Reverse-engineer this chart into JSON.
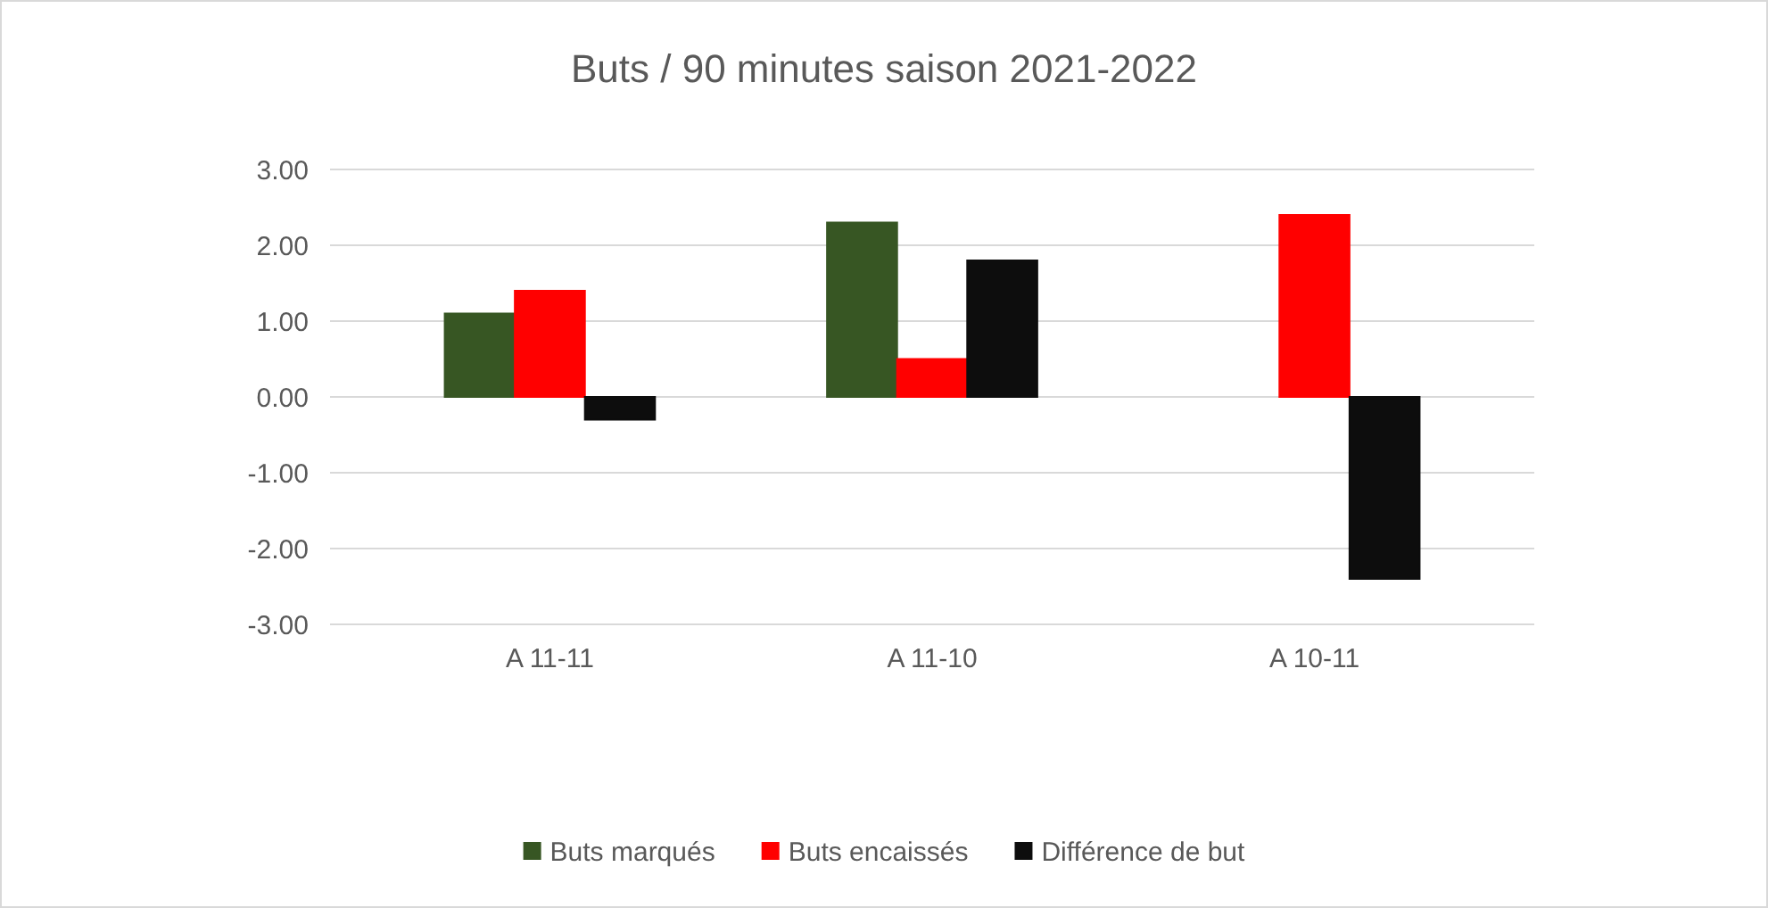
{
  "chart_data": {
    "type": "bar",
    "title": "Buts / 90 minutes saison 2021-2022",
    "categories": [
      "A 11-11",
      "A 11-10",
      "A 10-11"
    ],
    "series": [
      {
        "name": "Buts marqués",
        "color": "#375623",
        "values": [
          1.1,
          2.3,
          0
        ]
      },
      {
        "name": "Buts encaissés",
        "color": "#ff0000",
        "values": [
          1.4,
          0.5,
          2.4
        ]
      },
      {
        "name": "Différence de but",
        "color": "#0d0d0d",
        "values": [
          -0.3,
          1.8,
          -2.4
        ]
      }
    ],
    "ylim": [
      -3,
      3
    ],
    "yticks": [
      {
        "value": -3,
        "label": "-3.00"
      },
      {
        "value": -2,
        "label": "-2.00"
      },
      {
        "value": -1,
        "label": "-1.00"
      },
      {
        "value": 0,
        "label": "0.00"
      },
      {
        "value": 1,
        "label": "1.00"
      },
      {
        "value": 2,
        "label": "2.00"
      },
      {
        "value": 3,
        "label": "3.00"
      }
    ],
    "grid": "y",
    "legend": "bottom"
  }
}
